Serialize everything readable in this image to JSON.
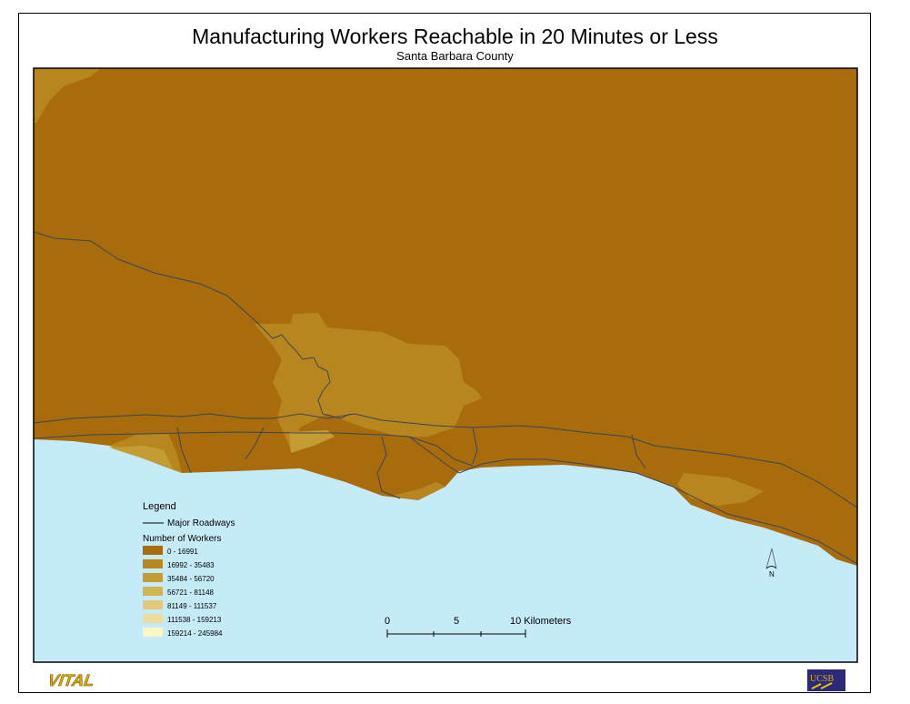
{
  "title": "Manufacturing Workers Reachable in 20 Minutes or Less",
  "subtitle": "Santa Barbara County",
  "colors": {
    "water": "#c6ebf8",
    "road": "#3a4656"
  },
  "legend": {
    "title": "Legend",
    "roads_label": "Major Roadways",
    "classes_title": "Number of Workers",
    "classes": [
      {
        "label": "0 - 16991",
        "color": "#a86c0c"
      },
      {
        "label": "16992 - 35483",
        "color": "#b8861e"
      },
      {
        "label": "35484 - 56720",
        "color": "#c49c34"
      },
      {
        "label": "56721 - 81148",
        "color": "#d4b450"
      },
      {
        "label": "81149 - 111537",
        "color": "#e2c878"
      },
      {
        "label": "111538 - 159213",
        "color": "#eedc9c"
      },
      {
        "label": "159214 - 245984",
        "color": "#fcf6c4"
      }
    ]
  },
  "scale_bar": {
    "labels": [
      "0",
      "5",
      "10 Kilometers"
    ]
  },
  "north_arrow": {
    "label": "N"
  },
  "logos": {
    "left": "VITAL",
    "right": "UCSB"
  }
}
